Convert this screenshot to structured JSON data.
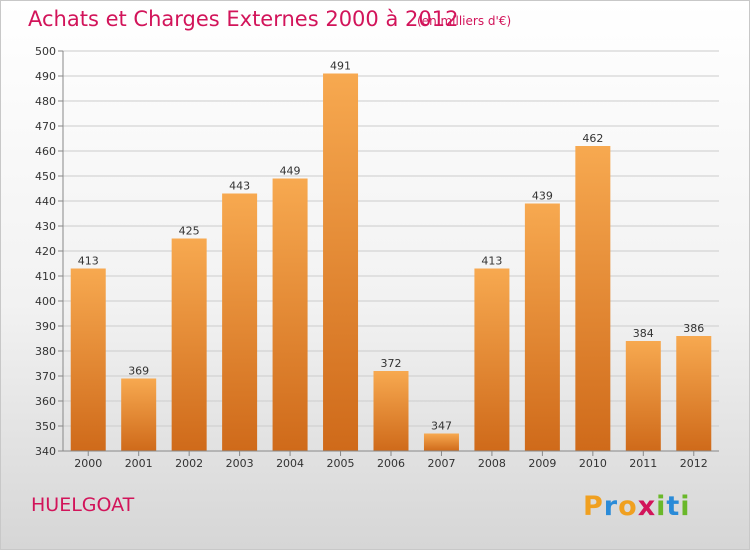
{
  "header": {
    "title": "Achats et Charges Externes 2000 à 2012",
    "unit": "(en milliers d'€)"
  },
  "footer": {
    "place": "HUELGOAT",
    "logo": {
      "text": "Proxiti",
      "letters": [
        {
          "ch": "P",
          "color": "#f0a020"
        },
        {
          "ch": "r",
          "color": "#2a8bd8"
        },
        {
          "ch": "o",
          "color": "#f0a020"
        },
        {
          "ch": "x",
          "color": "#d2145a"
        },
        {
          "ch": "i",
          "color": "#6ab82a"
        },
        {
          "ch": "t",
          "color": "#2a8bd8"
        },
        {
          "ch": "i",
          "color": "#6ab82a"
        }
      ]
    }
  },
  "colors": {
    "accent": "#d2145a",
    "bar_light": "#f7a950",
    "bar_dark": "#cf6a1a",
    "grid": "#cccccc"
  },
  "chart_data": {
    "type": "bar",
    "title": "Achats et Charges Externes 2000 à 2012",
    "subtitle": "(en milliers d'€)",
    "categories": [
      "2000",
      "2001",
      "2002",
      "2003",
      "2004",
      "2005",
      "2006",
      "2007",
      "2008",
      "2009",
      "2010",
      "2011",
      "2012"
    ],
    "values": [
      413,
      369,
      425,
      443,
      449,
      491,
      372,
      347,
      413,
      439,
      462,
      384,
      386
    ],
    "ylim": [
      340,
      500
    ],
    "ytick_step": 10,
    "grid": true,
    "data_labels": true
  }
}
